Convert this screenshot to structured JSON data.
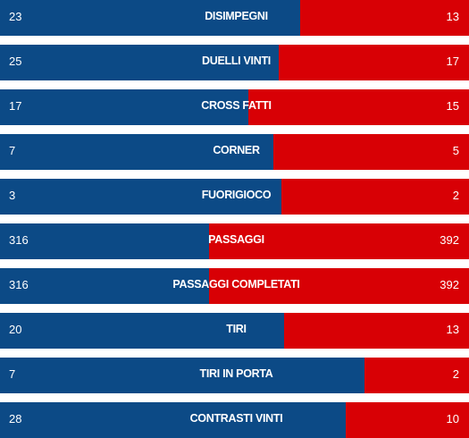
{
  "colors": {
    "home": "#0c4a86",
    "away": "#d80005",
    "text": "#ffffff",
    "background": "#ffffff"
  },
  "stats": [
    {
      "label": "DISIMPEGNI",
      "home": "23",
      "away": "13",
      "home_share": 0.64
    },
    {
      "label": "DUELLI VINTI",
      "home": "25",
      "away": "17",
      "home_share": 0.595
    },
    {
      "label": "CROSS FATTI",
      "home": "17",
      "away": "15",
      "home_share": 0.53
    },
    {
      "label": "CORNER",
      "home": "7",
      "away": "5",
      "home_share": 0.583
    },
    {
      "label": "FUORIGIOCO",
      "home": "3",
      "away": "2",
      "home_share": 0.6
    },
    {
      "label": "PASSAGGI",
      "home": "316",
      "away": "392",
      "home_share": 0.446
    },
    {
      "label": "PASSAGGI COMPLETATI",
      "home": "316",
      "away": "392",
      "home_share": 0.446
    },
    {
      "label": "TIRI",
      "home": "20",
      "away": "13",
      "home_share": 0.606
    },
    {
      "label": "TIRI IN PORTA",
      "home": "7",
      "away": "2",
      "home_share": 0.778
    },
    {
      "label": "CONTRASTI VINTI",
      "home": "28",
      "away": "10",
      "home_share": 0.737
    }
  ]
}
